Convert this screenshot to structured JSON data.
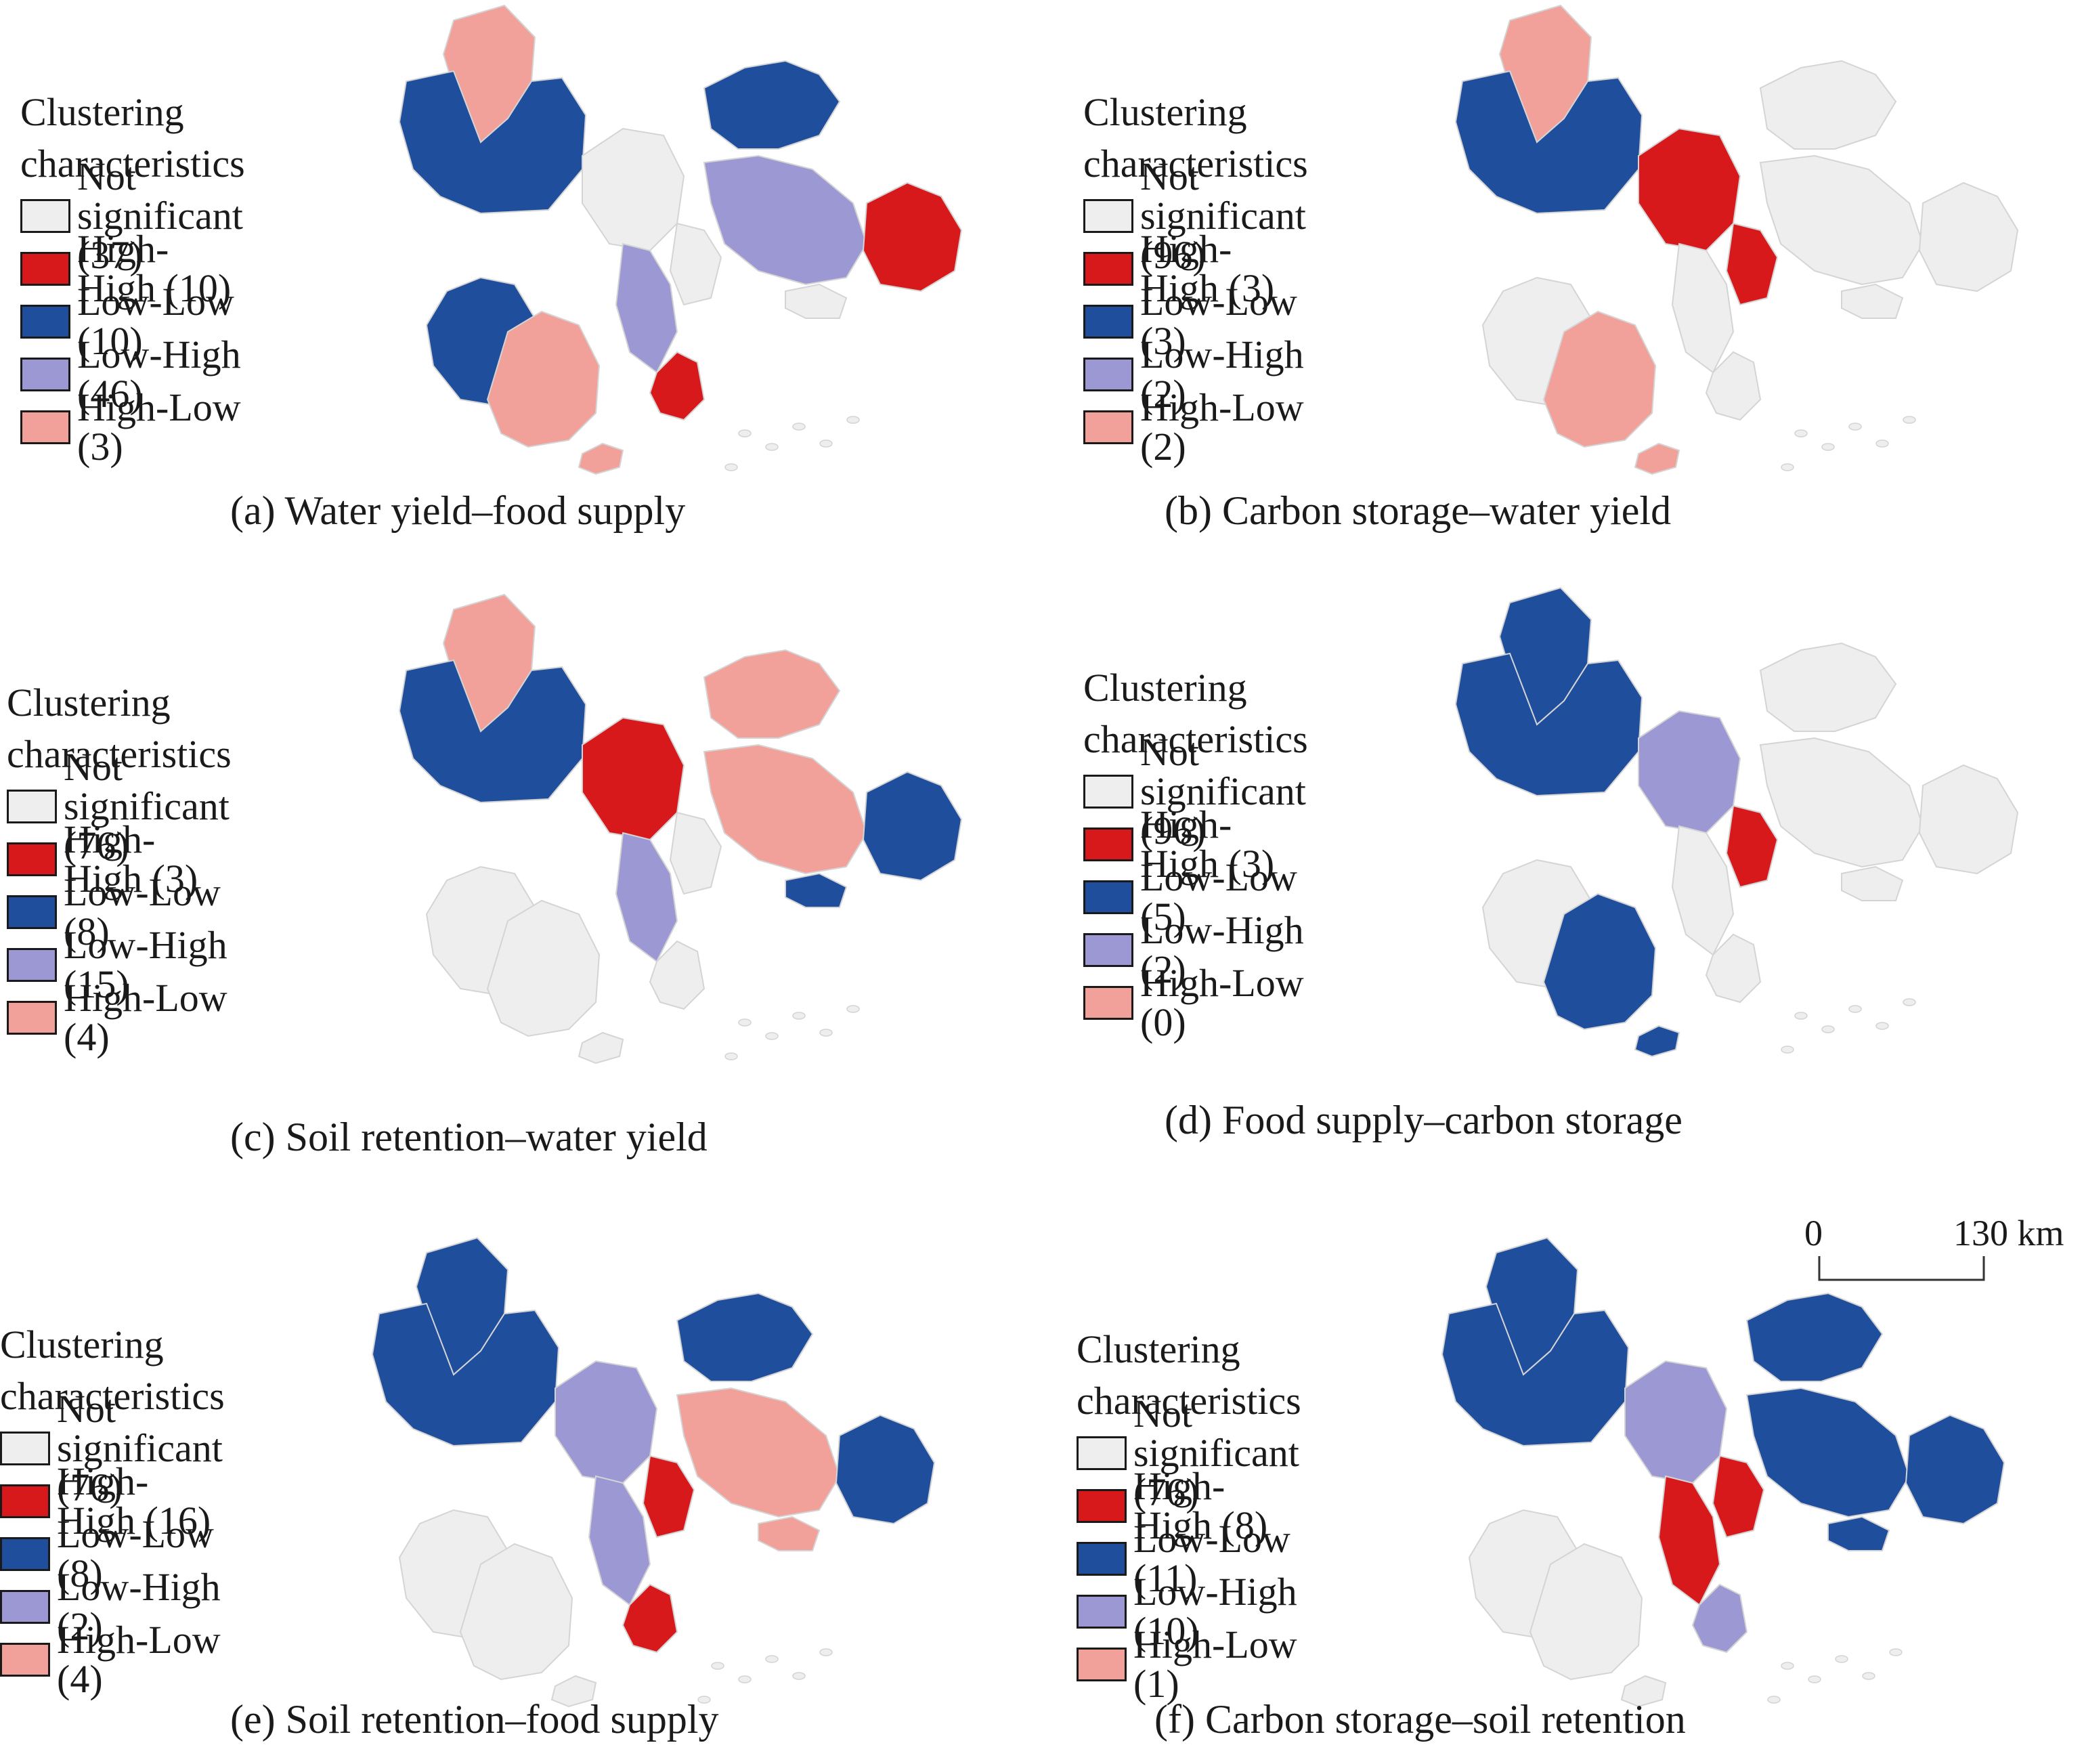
{
  "colors": {
    "not_significant": "#eeeeee",
    "high_high": "#d7191c",
    "low_low": "#1f4e9c",
    "low_high": "#9b98d4",
    "high_low": "#f2a09a",
    "region_edge": "#d4d4d4"
  },
  "legend_title_line1": "Clustering",
  "legend_title_line2": "characteristics",
  "panels": [
    {
      "caption": "(a) Water yield–food supply",
      "legend": [
        {
          "key": "not_significant",
          "label": "Not significant (37)"
        },
        {
          "key": "high_high",
          "label": "High-High (10)"
        },
        {
          "key": "low_low",
          "label": "Low-Low (10)"
        },
        {
          "key": "low_high",
          "label": "Low-High (46)"
        },
        {
          "key": "high_low",
          "label": "High-Low (3)"
        }
      ],
      "regions": {
        "NW": "high_low",
        "WNW": "low_low",
        "WSW": "low_low",
        "SW": "high_low",
        "CN": "not_significant",
        "CW": "low_high",
        "CC": "not_significant",
        "CS": "high_high",
        "NE": "low_low",
        "E1": "low_high",
        "E2": "high_high",
        "EF": "not_significant",
        "IS": "high_low"
      }
    },
    {
      "caption": "(b) Carbon storage–water yield",
      "legend": [
        {
          "key": "not_significant",
          "label": "Not significant (96)"
        },
        {
          "key": "high_high",
          "label": "High-High (3)"
        },
        {
          "key": "low_low",
          "label": "Low-Low (3)"
        },
        {
          "key": "low_high",
          "label": "Low-High (2)"
        },
        {
          "key": "high_low",
          "label": "High-Low (2)"
        }
      ],
      "regions": {
        "NW": "high_low",
        "WNW": "low_low",
        "WSW": "not_significant",
        "SW": "high_low",
        "CN": "high_high",
        "CW": "not_significant",
        "CC": "high_high",
        "CS": "not_significant",
        "NE": "not_significant",
        "E1": "not_significant",
        "E2": "not_significant",
        "EF": "not_significant",
        "IS": "high_low"
      }
    },
    {
      "caption": "(c) Soil retention–water yield",
      "legend": [
        {
          "key": "not_significant",
          "label": "Not significant (76)"
        },
        {
          "key": "high_high",
          "label": "High-High (3)"
        },
        {
          "key": "low_low",
          "label": "Low-Low (8)"
        },
        {
          "key": "low_high",
          "label": "Low-High (15)"
        },
        {
          "key": "high_low",
          "label": "High-Low (4)"
        }
      ],
      "regions": {
        "NW": "high_low",
        "WNW": "low_low",
        "WSW": "not_significant",
        "SW": "not_significant",
        "CN": "high_high",
        "CW": "low_high",
        "CC": "not_significant",
        "CS": "not_significant",
        "NE": "high_low",
        "E1": "high_low",
        "E2": "low_low",
        "EF": "low_low",
        "IS": "not_significant"
      }
    },
    {
      "caption": "(d) Food supply–carbon storage",
      "legend": [
        {
          "key": "not_significant",
          "label": "Not significant (96)"
        },
        {
          "key": "high_high",
          "label": "High-High (3)"
        },
        {
          "key": "low_low",
          "label": "Low-Low (5)"
        },
        {
          "key": "low_high",
          "label": "Low-High (2)"
        },
        {
          "key": "high_low",
          "label": "High-Low (0)"
        }
      ],
      "regions": {
        "NW": "low_low",
        "WNW": "low_low",
        "WSW": "not_significant",
        "SW": "low_low",
        "CN": "low_high",
        "CW": "not_significant",
        "CC": "high_high",
        "CS": "not_significant",
        "NE": "not_significant",
        "E1": "not_significant",
        "E2": "not_significant",
        "EF": "not_significant",
        "IS": "low_low"
      }
    },
    {
      "caption": "(e) Soil retention–food supply",
      "legend": [
        {
          "key": "not_significant",
          "label": "Not significant (76)"
        },
        {
          "key": "high_high",
          "label": "High-High (16)"
        },
        {
          "key": "low_low",
          "label": "Low-Low (8)"
        },
        {
          "key": "low_high",
          "label": "Low-High (2)"
        },
        {
          "key": "high_low",
          "label": "High-Low (4)"
        }
      ],
      "regions": {
        "NW": "low_low",
        "WNW": "low_low",
        "WSW": "not_significant",
        "SW": "not_significant",
        "CN": "low_high",
        "CW": "low_high",
        "CC": "high_high",
        "CS": "high_high",
        "NE": "low_low",
        "E1": "high_low",
        "E2": "low_low",
        "EF": "high_low",
        "IS": "not_significant"
      }
    },
    {
      "caption": "(f) Carbon storage–soil retention",
      "legend": [
        {
          "key": "not_significant",
          "label": "Not significant (76)"
        },
        {
          "key": "high_high",
          "label": "High-High (8)"
        },
        {
          "key": "low_low",
          "label": "Low-Low (11)"
        },
        {
          "key": "low_high",
          "label": "Low-High (10)"
        },
        {
          "key": "high_low",
          "label": "High-Low (1)"
        }
      ],
      "regions": {
        "NW": "low_low",
        "WNW": "low_low",
        "WSW": "not_significant",
        "SW": "not_significant",
        "CN": "low_high",
        "CW": "high_high",
        "CC": "high_high",
        "CS": "low_high",
        "NE": "low_low",
        "E1": "low_low",
        "E2": "low_low",
        "EF": "low_low",
        "IS": "not_significant"
      }
    }
  ],
  "scale": {
    "start_label": "0",
    "end_label": "130 km"
  }
}
